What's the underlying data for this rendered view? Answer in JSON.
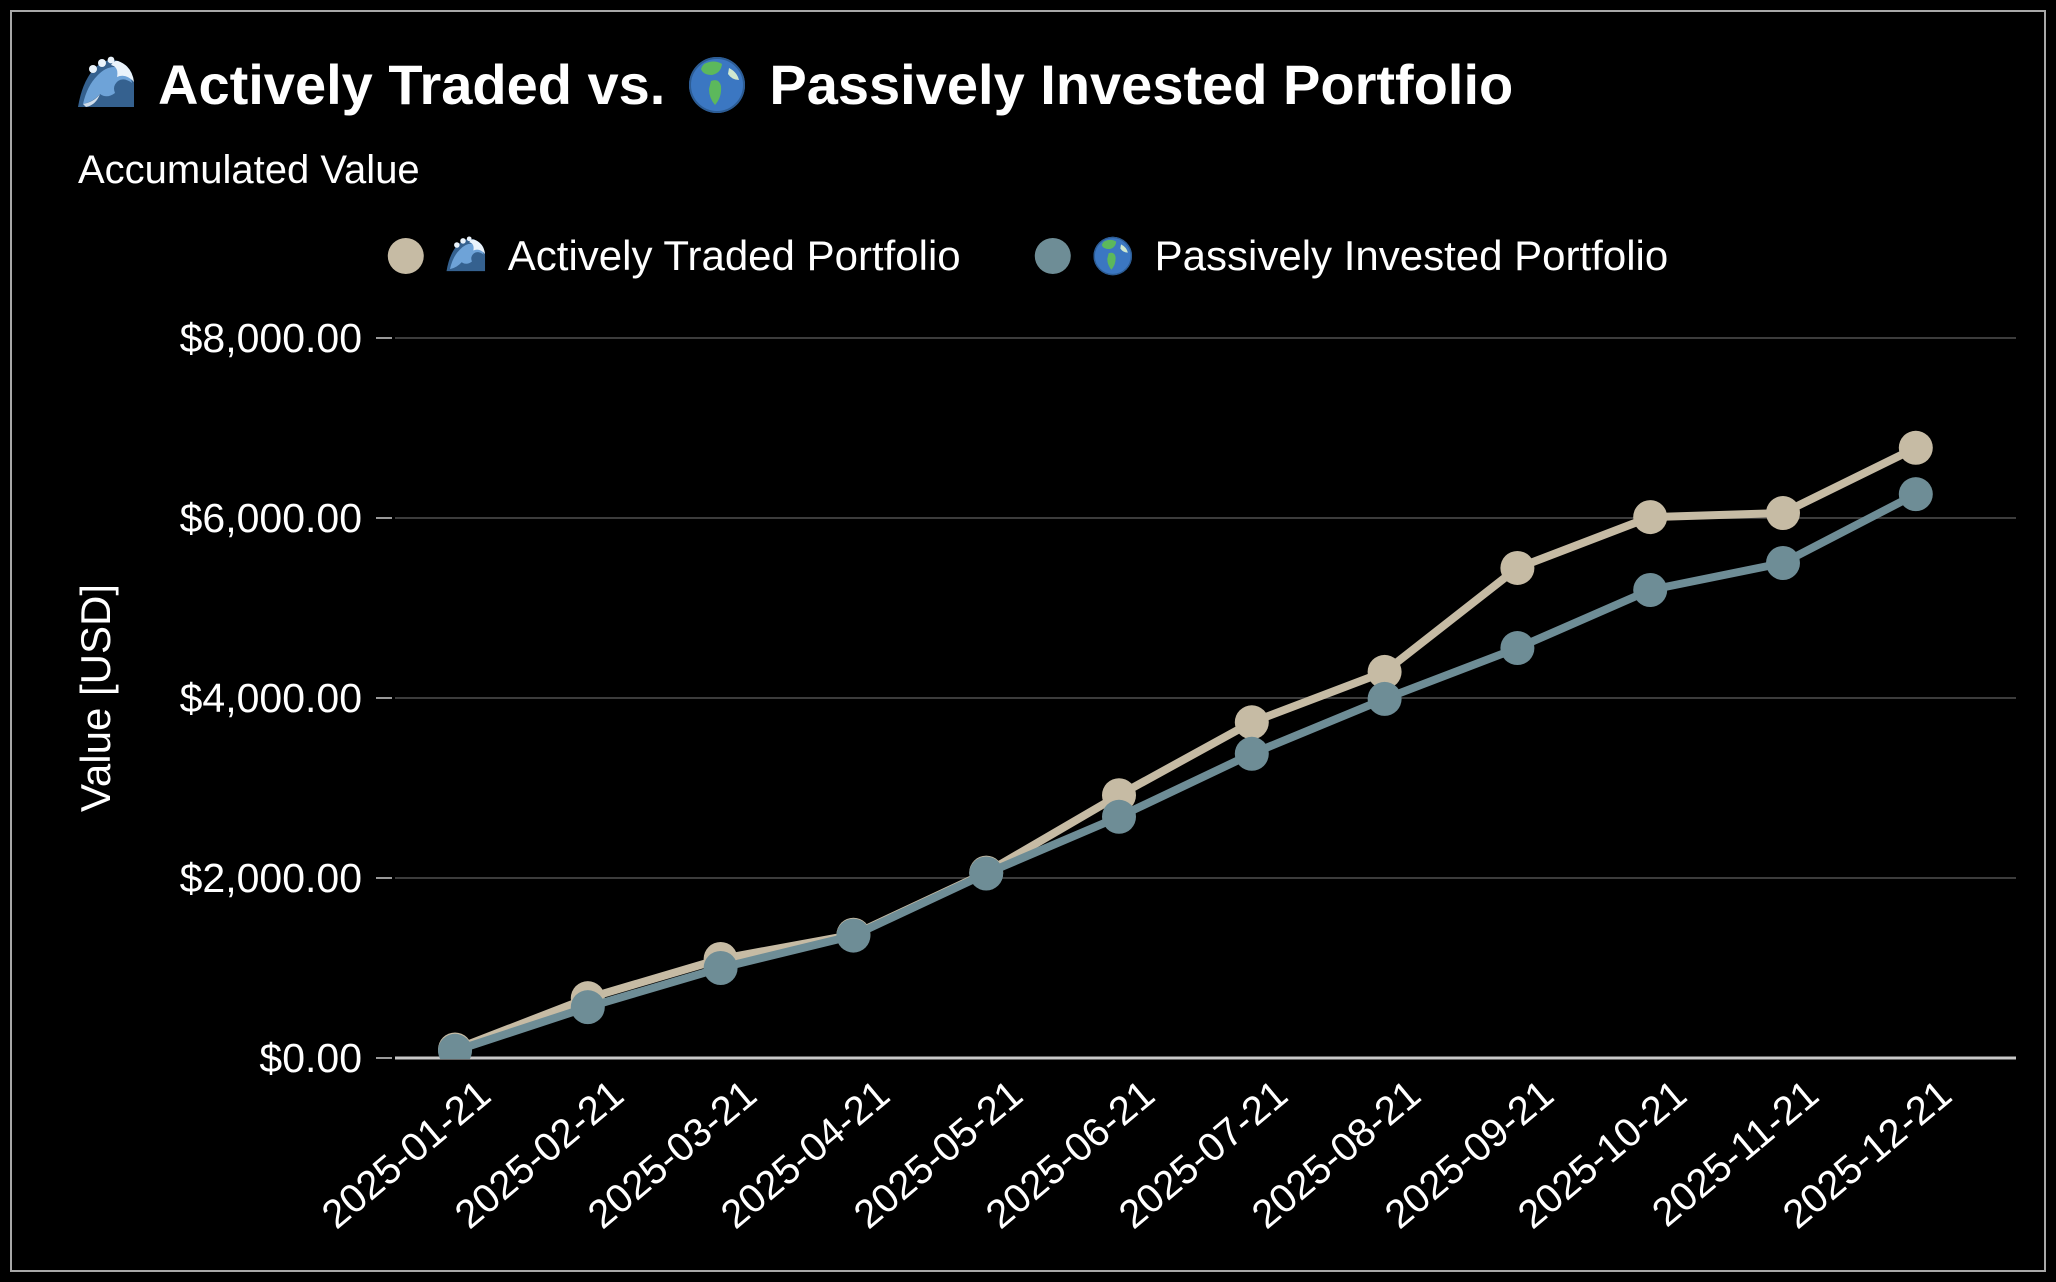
{
  "header": {
    "title_full": "🌊 Actively Traded vs. 🌎 Passively Invested Portfolio",
    "title_part1": "Actively Traded vs.",
    "title_part2": "Passively Invested Portfolio",
    "subtitle": "Accumulated Value",
    "wave_emoji": "🌊",
    "globe_emoji": "🌎"
  },
  "legend": {
    "items": [
      {
        "label": "Actively Traded Portfolio",
        "full_label": "🌊 Actively Traded Portfolio",
        "icon": "wave-emoji-icon",
        "marker_color": "#C6BBA4"
      },
      {
        "label": "Passively Invested Portfolio",
        "full_label": "🌏 Passively Invested Portfolio",
        "icon": "globe-emoji-icon",
        "marker_color": "#6E8D96"
      }
    ]
  },
  "chart_data": {
    "type": "line",
    "title": "🌊 Actively Traded vs. 🌎 Passively Invested Portfolio",
    "subtitle": "Accumulated Value",
    "xlabel": "",
    "ylabel": "Value [USD]",
    "ylim": [
      0,
      8000
    ],
    "ytick_values": [
      0,
      2000,
      4000,
      6000,
      8000
    ],
    "ytick_labels": [
      "$0.00",
      "$2,000.00",
      "$4,000.00",
      "$6,000.00",
      "$8,000.00"
    ],
    "categories": [
      "2025-01-21",
      "2025-02-21",
      "2025-03-21",
      "2025-04-21",
      "2025-05-21",
      "2025-06-21",
      "2025-07-21",
      "2025-08-21",
      "2025-09-21",
      "2025-10-21",
      "2025-11-21",
      "2025-12-21"
    ],
    "series": [
      {
        "name": "🌊 Actively Traded Portfolio",
        "color": "#C6BBA4",
        "values": [
          95,
          665,
          1100,
          1370,
          2060,
          2920,
          3730,
          4290,
          5445,
          6010,
          6055,
          6780
        ]
      },
      {
        "name": "🌏 Passively Invested Portfolio",
        "color": "#6E8D96",
        "values": [
          80,
          565,
          1000,
          1360,
          2050,
          2680,
          3380,
          3990,
          4555,
          5200,
          5500,
          6265
        ]
      }
    ],
    "grid": true,
    "legend_position": "top-center",
    "background_color": "#000000",
    "text_color": "#FFFFFF",
    "gridline_color": "#3C3C3C",
    "zeroline_color": "#C8C8C8"
  }
}
